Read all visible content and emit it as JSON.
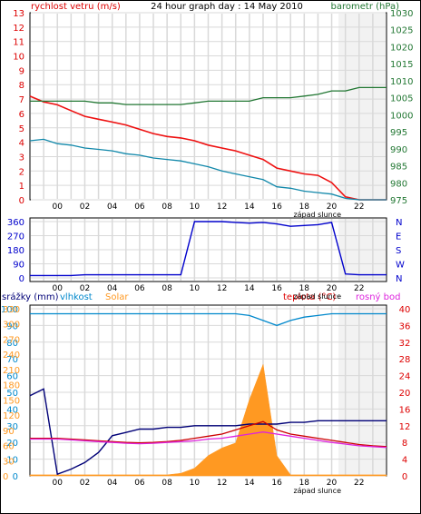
{
  "header": {
    "wind_label": "rychlost vetru (m/s)",
    "title": "24 hour graph day : 14 May 2010",
    "baro_label": "barometr (hPa)"
  },
  "colors": {
    "wind": "#ee1111",
    "gust": "#dd0000",
    "wind_avg": "#1188aa",
    "baro": "#227733",
    "dir": "#0000cc",
    "rain": "#000077",
    "humidity": "#0088cc",
    "solar": "#ff9922",
    "temp": "#cc0000",
    "dew": "#dd22dd",
    "axis_red": "#dd0000",
    "axis_blue": "#0077cc",
    "grid": "#d9d9d9",
    "sunset": "#f2f2f2"
  },
  "x_ticks": [
    "00",
    "02",
    "04",
    "06",
    "08",
    "10",
    "12",
    "14",
    "16",
    "18",
    "20",
    "22"
  ],
  "sunset_label": "západ slunce",
  "chart_data": [
    {
      "type": "line",
      "title": "24 hour graph day : 14 May 2010",
      "ylabel": "rychlost vetru (m/s)",
      "y2label": "barometr (hPa)",
      "xlim": [
        -2,
        24
      ],
      "ylim": [
        0,
        13
      ],
      "y2lim": [
        975,
        1030
      ],
      "yticks": [
        "0",
        "1",
        "2",
        "3",
        "4",
        "5",
        "6",
        "7",
        "8",
        "9",
        "10",
        "11",
        "12",
        "13"
      ],
      "y2ticks": [
        "975",
        "980",
        "985",
        "990",
        "995",
        "1000",
        "1005",
        "1010",
        "1015",
        "1020",
        "1025",
        "1030"
      ],
      "x": [
        -2,
        -1,
        0,
        1,
        2,
        3,
        4,
        5,
        6,
        7,
        8,
        9,
        10,
        11,
        12,
        13,
        14,
        15,
        16,
        17,
        18,
        19,
        20,
        21,
        22,
        23,
        24
      ],
      "series": [
        {
          "key": "wind",
          "values": [
            7.2,
            6.8,
            6.6,
            6.2,
            5.8,
            5.6,
            5.4,
            5.2,
            4.9,
            4.6,
            4.4,
            4.3,
            4.1,
            3.8,
            3.6,
            3.4,
            3.1,
            2.8,
            2.2,
            2.0,
            1.8,
            1.7,
            1.2,
            0.2,
            0.0,
            0.0,
            0.0
          ]
        },
        {
          "key": "wind_avg",
          "values": [
            4.1,
            4.2,
            3.9,
            3.8,
            3.6,
            3.5,
            3.4,
            3.2,
            3.1,
            2.9,
            2.8,
            2.7,
            2.5,
            2.3,
            2.0,
            1.8,
            1.6,
            1.4,
            0.9,
            0.8,
            0.6,
            0.5,
            0.4,
            0.1,
            0.0,
            0.0,
            0.0
          ]
        },
        {
          "key": "baro",
          "values": [
            1004,
            1004,
            1004,
            1004,
            1004,
            1003.5,
            1003.5,
            1003,
            1003,
            1003,
            1003,
            1003,
            1003.5,
            1004,
            1004,
            1004,
            1004,
            1005,
            1005,
            1005,
            1005.5,
            1006,
            1007,
            1007,
            1008,
            1008,
            1008
          ]
        }
      ]
    },
    {
      "type": "line",
      "ylim": [
        0,
        360
      ],
      "yticks": [
        "0",
        "90",
        "180",
        "270",
        "360"
      ],
      "y2ticks": [
        "N",
        "W",
        "S",
        "E",
        "N"
      ],
      "x": [
        -2,
        -1,
        0,
        1,
        2,
        3,
        4,
        5,
        6,
        7,
        8,
        9,
        10,
        11,
        12,
        13,
        14,
        15,
        16,
        17,
        18,
        19,
        20,
        21,
        22,
        23,
        24
      ],
      "series": [
        {
          "key": "dir",
          "values": [
            15,
            15,
            15,
            15,
            20,
            20,
            20,
            20,
            20,
            20,
            20,
            20,
            360,
            360,
            360,
            355,
            350,
            355,
            345,
            330,
            335,
            340,
            355,
            25,
            20,
            20,
            20
          ]
        }
      ]
    },
    {
      "type": "line",
      "legend": [
        "srážky (mm)",
        "vlhkost",
        "Solar",
        "teplota (°C)",
        "rosný bod"
      ],
      "ylim": [
        0,
        100
      ],
      "yticks_solar": [
        "0",
        "30",
        "60",
        "90",
        "120",
        "150",
        "180",
        "210",
        "240",
        "270",
        "300",
        "330"
      ],
      "yticks_hum": [
        "0",
        "10",
        "20",
        "30",
        "40",
        "50",
        "60",
        "70",
        "80",
        "90",
        "100"
      ],
      "yticks_temp": [
        "0",
        "2",
        "4",
        "6",
        "8",
        "10",
        "12",
        "14",
        "16",
        "18",
        "20",
        "22",
        "24",
        "26",
        "28",
        "30",
        "32",
        "34",
        "36",
        "38",
        "40"
      ],
      "y2ticks": [
        "0",
        "4",
        "8",
        "12",
        "16",
        "20",
        "24",
        "28",
        "32",
        "36",
        "40"
      ],
      "x": [
        -2,
        -1,
        0,
        1,
        2,
        3,
        4,
        5,
        6,
        7,
        8,
        9,
        10,
        11,
        12,
        13,
        14,
        15,
        16,
        17,
        18,
        19,
        20,
        21,
        22,
        23,
        24
      ],
      "series": [
        {
          "key": "rain",
          "values": [
            48,
            52,
            1,
            4,
            8,
            14,
            24,
            26,
            28,
            28,
            29,
            29,
            30,
            30,
            30,
            30,
            31,
            31,
            31,
            32,
            32,
            33,
            33,
            33,
            33,
            33,
            33
          ]
        },
        {
          "key": "humidity",
          "values": [
            97,
            97,
            97,
            97,
            97,
            97,
            97,
            97,
            97,
            97,
            97,
            97,
            97,
            97,
            97,
            97,
            96,
            93,
            90,
            93,
            95,
            96,
            97,
            97,
            97,
            97,
            97
          ]
        },
        {
          "key": "solar",
          "values": [
            2,
            2,
            2,
            2,
            2,
            2,
            2,
            2,
            2,
            2,
            2,
            5,
            15,
            40,
            55,
            65,
            150,
            220,
            40,
            2,
            2,
            2,
            2,
            2,
            2,
            2,
            2
          ]
        },
        {
          "key": "temp",
          "values": [
            9,
            9,
            9,
            8.8,
            8.6,
            8.4,
            8.2,
            8.0,
            7.9,
            8.0,
            8.2,
            8.5,
            9.0,
            9.5,
            10,
            11,
            12,
            13,
            11,
            10,
            9.5,
            9,
            8.5,
            8,
            7.5,
            7.2,
            7.0
          ]
        },
        {
          "key": "dew",
          "values": [
            8.8,
            8.8,
            8.8,
            8.6,
            8.4,
            8.2,
            8.0,
            7.8,
            7.7,
            7.8,
            8.0,
            8.2,
            8.4,
            8.8,
            9.0,
            9.5,
            10,
            10.5,
            10,
            9.5,
            9,
            8.5,
            8,
            7.6,
            7.2,
            7.0,
            6.8
          ]
        }
      ]
    }
  ]
}
